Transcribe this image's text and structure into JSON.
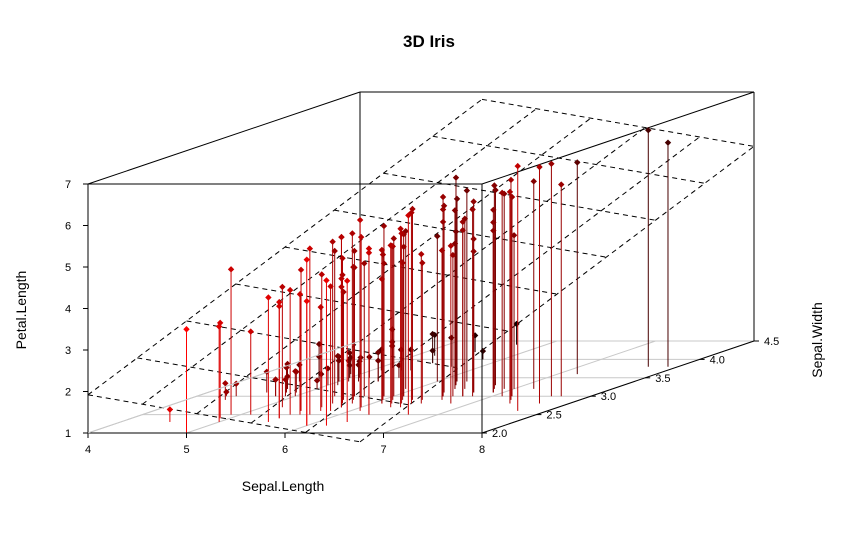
{
  "chart_data": {
    "type": "scatter3d",
    "title": "3D Iris",
    "xlabel": "Sepal.Length",
    "ylabel": "Sepal.Width",
    "zlabel": "Petal.Length",
    "xlim": [
      4,
      8
    ],
    "ylim": [
      2.0,
      4.5
    ],
    "zlim": [
      1,
      7
    ],
    "x_ticks": [
      "4",
      "5",
      "6",
      "7",
      "8"
    ],
    "y_ticks": [
      "2.0",
      "2.5",
      "3.0",
      "3.5",
      "4.0",
      "4.5"
    ],
    "z_ticks": [
      "1",
      "2",
      "3",
      "4",
      "5",
      "6",
      "7"
    ],
    "point_style": "diamond with vertical drop line",
    "color_gradient": {
      "low": "#000000",
      "high": "#ff0000",
      "variable": "depth (Sepal.Width)"
    },
    "regression_plane": {
      "style": "dashed",
      "intercept": -2.52,
      "slope_x": 1.78,
      "slope_y": -1.34
    },
    "points": [
      [
        4.3,
        3.0,
        1.1
      ],
      [
        4.4,
        2.9,
        1.4
      ],
      [
        4.4,
        3.0,
        1.3
      ],
      [
        4.5,
        2.3,
        1.3
      ],
      [
        4.6,
        3.1,
        1.5
      ],
      [
        4.6,
        3.4,
        1.4
      ],
      [
        4.6,
        3.6,
        1.0
      ],
      [
        4.7,
        3.2,
        1.3
      ],
      [
        4.7,
        3.2,
        1.6
      ],
      [
        4.8,
        3.0,
        1.4
      ],
      [
        4.8,
        3.4,
        1.6
      ],
      [
        4.8,
        3.0,
        1.4
      ],
      [
        4.8,
        3.4,
        1.9
      ],
      [
        4.8,
        3.1,
        1.6
      ],
      [
        4.9,
        3.0,
        1.4
      ],
      [
        4.9,
        3.1,
        1.5
      ],
      [
        4.9,
        3.6,
        1.4
      ],
      [
        4.9,
        2.4,
        3.3
      ],
      [
        4.9,
        2.5,
        4.5
      ],
      [
        5.0,
        3.6,
        1.4
      ],
      [
        5.0,
        3.4,
        1.5
      ],
      [
        5.0,
        3.0,
        1.6
      ],
      [
        5.0,
        3.4,
        1.6
      ],
      [
        5.0,
        3.2,
        1.2
      ],
      [
        5.0,
        3.5,
        1.3
      ],
      [
        5.0,
        3.5,
        1.6
      ],
      [
        5.0,
        3.3,
        1.4
      ],
      [
        5.0,
        2.0,
        3.5
      ],
      [
        5.0,
        2.3,
        3.3
      ],
      [
        5.1,
        3.5,
        1.4
      ],
      [
        5.1,
        3.8,
        1.5
      ],
      [
        5.1,
        3.7,
        1.5
      ],
      [
        5.1,
        3.3,
        1.7
      ],
      [
        5.1,
        3.8,
        1.9
      ],
      [
        5.1,
        3.4,
        1.5
      ],
      [
        5.1,
        3.8,
        1.6
      ],
      [
        5.1,
        2.5,
        3.0
      ],
      [
        5.2,
        3.5,
        1.5
      ],
      [
        5.2,
        3.4,
        1.4
      ],
      [
        5.2,
        4.1,
        1.5
      ],
      [
        5.2,
        2.7,
        3.9
      ],
      [
        5.3,
        3.7,
        1.5
      ],
      [
        5.4,
        3.9,
        1.7
      ],
      [
        5.4,
        3.7,
        1.5
      ],
      [
        5.4,
        3.9,
        1.3
      ],
      [
        5.4,
        3.4,
        1.7
      ],
      [
        5.4,
        3.4,
        1.5
      ],
      [
        5.4,
        3.0,
        4.5
      ],
      [
        5.5,
        4.2,
        1.4
      ],
      [
        5.5,
        3.5,
        1.3
      ],
      [
        5.5,
        2.3,
        4.0
      ],
      [
        5.5,
        2.4,
        3.8
      ],
      [
        5.5,
        2.4,
        3.7
      ],
      [
        5.5,
        2.5,
        4.0
      ],
      [
        5.5,
        2.6,
        4.4
      ],
      [
        5.6,
        2.9,
        3.6
      ],
      [
        5.6,
        3.0,
        4.5
      ],
      [
        5.6,
        2.5,
        3.9
      ],
      [
        5.6,
        3.0,
        4.1
      ],
      [
        5.6,
        2.7,
        4.2
      ],
      [
        5.6,
        2.8,
        4.9
      ],
      [
        5.7,
        4.4,
        1.5
      ],
      [
        5.7,
        3.8,
        1.7
      ],
      [
        5.7,
        2.8,
        4.5
      ],
      [
        5.7,
        2.6,
        3.5
      ],
      [
        5.7,
        3.0,
        4.2
      ],
      [
        5.7,
        2.9,
        4.2
      ],
      [
        5.7,
        2.8,
        4.1
      ],
      [
        5.7,
        2.5,
        5.0
      ],
      [
        5.8,
        4.0,
        1.2
      ],
      [
        5.8,
        2.7,
        4.1
      ],
      [
        5.8,
        2.7,
        3.9
      ],
      [
        5.8,
        2.6,
        4.0
      ],
      [
        5.8,
        2.7,
        5.1
      ],
      [
        5.8,
        2.8,
        5.1
      ],
      [
        5.8,
        2.7,
        5.1
      ],
      [
        5.9,
        3.0,
        4.2
      ],
      [
        5.9,
        3.2,
        4.8
      ],
      [
        5.9,
        3.0,
        5.1
      ],
      [
        6.0,
        2.2,
        4.0
      ],
      [
        6.0,
        2.9,
        4.5
      ],
      [
        6.0,
        2.7,
        5.1
      ],
      [
        6.0,
        3.4,
        4.5
      ],
      [
        6.0,
        2.2,
        5.0
      ],
      [
        6.0,
        3.0,
        4.8
      ],
      [
        6.1,
        2.9,
        4.7
      ],
      [
        6.1,
        2.8,
        4.0
      ],
      [
        6.1,
        2.8,
        4.7
      ],
      [
        6.1,
        3.0,
        4.6
      ],
      [
        6.1,
        3.0,
        4.9
      ],
      [
        6.1,
        2.6,
        5.6
      ],
      [
        6.2,
        2.2,
        4.5
      ],
      [
        6.2,
        2.9,
        4.3
      ],
      [
        6.2,
        2.8,
        4.8
      ],
      [
        6.2,
        3.4,
        5.4
      ],
      [
        6.3,
        3.3,
        4.7
      ],
      [
        6.3,
        2.5,
        4.9
      ],
      [
        6.3,
        2.3,
        4.4
      ],
      [
        6.3,
        3.3,
        6.0
      ],
      [
        6.3,
        2.9,
        5.6
      ],
      [
        6.3,
        2.7,
        4.9
      ],
      [
        6.3,
        2.8,
        5.1
      ],
      [
        6.3,
        3.4,
        5.6
      ],
      [
        6.3,
        2.5,
        5.0
      ],
      [
        6.4,
        3.2,
        4.5
      ],
      [
        6.4,
        2.9,
        4.3
      ],
      [
        6.4,
        2.7,
        5.3
      ],
      [
        6.4,
        3.2,
        5.3
      ],
      [
        6.4,
        2.8,
        5.6
      ],
      [
        6.4,
        3.1,
        5.5
      ],
      [
        6.5,
        2.8,
        4.6
      ],
      [
        6.5,
        3.0,
        5.8
      ],
      [
        6.5,
        3.2,
        5.1
      ],
      [
        6.5,
        3.0,
        5.5
      ],
      [
        6.5,
        3.0,
        5.2
      ],
      [
        6.6,
        2.9,
        4.6
      ],
      [
        6.6,
        3.0,
        4.4
      ],
      [
        6.7,
        3.1,
        4.4
      ],
      [
        6.7,
        3.0,
        5.0
      ],
      [
        6.7,
        3.1,
        4.7
      ],
      [
        6.7,
        2.5,
        5.8
      ],
      [
        6.7,
        3.3,
        5.7
      ],
      [
        6.7,
        3.1,
        5.6
      ],
      [
        6.7,
        3.3,
        5.7
      ],
      [
        6.7,
        3.0,
        5.2
      ],
      [
        6.8,
        2.8,
        4.8
      ],
      [
        6.8,
        3.0,
        5.5
      ],
      [
        6.8,
        3.2,
        5.9
      ],
      [
        6.9,
        3.1,
        4.9
      ],
      [
        6.9,
        3.2,
        5.7
      ],
      [
        6.9,
        3.1,
        5.4
      ],
      [
        6.9,
        3.1,
        5.1
      ],
      [
        7.0,
        3.2,
        4.7
      ],
      [
        7.1,
        3.0,
        5.9
      ],
      [
        7.2,
        3.6,
        6.1
      ],
      [
        7.2,
        3.2,
        6.0
      ],
      [
        7.2,
        3.0,
        5.8
      ],
      [
        7.3,
        2.9,
        6.3
      ],
      [
        7.4,
        2.8,
        6.1
      ],
      [
        7.6,
        3.0,
        6.6
      ],
      [
        7.7,
        3.8,
        6.7
      ],
      [
        7.7,
        2.6,
        6.9
      ],
      [
        7.7,
        2.8,
        6.7
      ],
      [
        7.7,
        3.0,
        6.1
      ],
      [
        7.9,
        3.8,
        6.4
      ]
    ]
  }
}
